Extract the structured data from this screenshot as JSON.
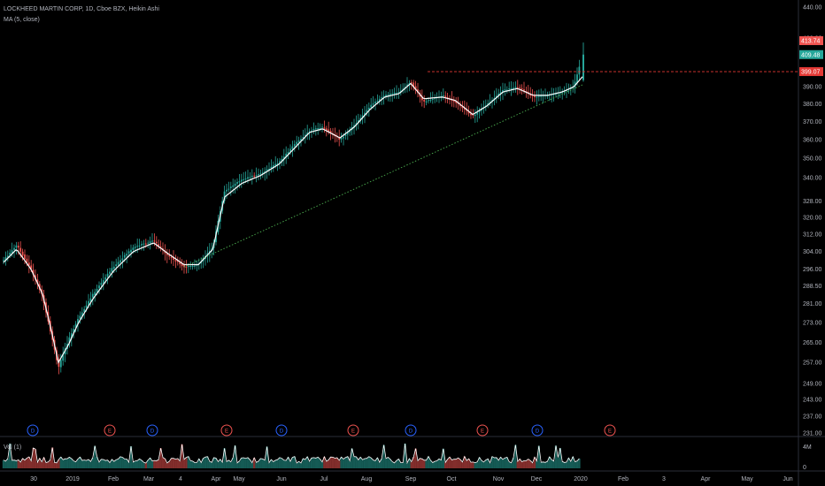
{
  "legend": {
    "symbol_line": "LOCKHEED MARTIN CORP, 1D, Cboe BZX, Heikin Ashi",
    "ma_line": "MA (5, close)",
    "vol_line": "Vol (1)"
  },
  "price_axis": {
    "ticks": [
      "440.00",
      "420.00",
      "400.00",
      "390.00",
      "380.00",
      "370.00",
      "360.00",
      "350.00",
      "340.00",
      "328.00",
      "320.00",
      "312.00",
      "304.00",
      "296.00",
      "288.50",
      "281.00",
      "273.00",
      "265.00",
      "257.00",
      "249.00",
      "243.00",
      "237.00",
      "231.00"
    ],
    "tags": [
      {
        "label": "413.74",
        "value": 413.74,
        "color": "#ef5350"
      },
      {
        "label": "409.48",
        "value": 409.48,
        "color": "#26a69a"
      },
      {
        "label": "399.07",
        "value": 399.07,
        "color": "#e53935"
      }
    ]
  },
  "volume_axis": {
    "ticks": [
      "4M",
      "0"
    ]
  },
  "time_axis": {
    "labels": [
      "30",
      "2019",
      "Feb",
      "Mar",
      "4",
      "Apr",
      "May",
      "Jun",
      "Jul",
      "Aug",
      "Sep",
      "Oct",
      "Nov",
      "Dec",
      "2020",
      "Feb",
      "3",
      "Apr",
      "May",
      "Jun"
    ]
  },
  "events": [
    "D",
    "E",
    "D",
    "E",
    "D",
    "E",
    "D",
    "E",
    "D",
    "E"
  ],
  "colors": {
    "up": "#26a69a",
    "down": "#ef5350",
    "ma": "#ffffff",
    "resistance": "#e53935",
    "support": "#4caf50",
    "dividend": "#2962ff",
    "earnings": "#ef5350"
  },
  "chart_data": {
    "type": "candlestick",
    "symbol": "LOCKHEED MARTIN CORP",
    "interval": "1D",
    "exchange": "Cboe BZX",
    "style": "Heikin Ashi",
    "indicators": [
      "MA (5, close)",
      "Vol (1)"
    ],
    "y_scale": "log",
    "ylim": [
      231,
      440
    ],
    "last_price": 409.48,
    "series": [
      {
        "name": "price",
        "points": [
          [
            "2018-12-01",
            300
          ],
          [
            "2018-12-10",
            307
          ],
          [
            "2018-12-20",
            296
          ],
          [
            "2018-12-28",
            284
          ],
          [
            "2019-01-03",
            268
          ],
          [
            "2019-01-08",
            255
          ],
          [
            "2019-01-15",
            266
          ],
          [
            "2019-01-22",
            275
          ],
          [
            "2019-02-01",
            285
          ],
          [
            "2019-02-15",
            297
          ],
          [
            "2019-03-01",
            306
          ],
          [
            "2019-03-15",
            309
          ],
          [
            "2019-03-25",
            302
          ],
          [
            "2019-04-05",
            297
          ],
          [
            "2019-04-15",
            298
          ],
          [
            "2019-04-25",
            306
          ],
          [
            "2019-05-03",
            333
          ],
          [
            "2019-05-15",
            339
          ],
          [
            "2019-05-28",
            342
          ],
          [
            "2019-06-10",
            348
          ],
          [
            "2019-06-20",
            357
          ],
          [
            "2019-07-01",
            365
          ],
          [
            "2019-07-10",
            367
          ],
          [
            "2019-07-22",
            360
          ],
          [
            "2019-08-01",
            368
          ],
          [
            "2019-08-12",
            379
          ],
          [
            "2019-08-22",
            385
          ],
          [
            "2019-09-01",
            387
          ],
          [
            "2019-09-09",
            393
          ],
          [
            "2019-09-18",
            381
          ],
          [
            "2019-10-01",
            385
          ],
          [
            "2019-10-10",
            381
          ],
          [
            "2019-10-22",
            373
          ],
          [
            "2019-11-01",
            380
          ],
          [
            "2019-11-12",
            388
          ],
          [
            "2019-11-22",
            390
          ],
          [
            "2019-12-03",
            384
          ],
          [
            "2019-12-13",
            385
          ],
          [
            "2019-12-23",
            387
          ],
          [
            "2019-12-31",
            390
          ],
          [
            "2020-01-06",
            409.48
          ]
        ]
      },
      {
        "name": "MA (5, close)",
        "points": [
          [
            "2018-12-01",
            299
          ],
          [
            "2018-12-10",
            305
          ],
          [
            "2018-12-20",
            296
          ],
          [
            "2018-12-28",
            285
          ],
          [
            "2019-01-03",
            270
          ],
          [
            "2019-01-08",
            257
          ],
          [
            "2019-01-15",
            264
          ],
          [
            "2019-01-22",
            273
          ],
          [
            "2019-02-01",
            283
          ],
          [
            "2019-02-15",
            295
          ],
          [
            "2019-03-01",
            304
          ],
          [
            "2019-03-15",
            308
          ],
          [
            "2019-03-25",
            303
          ],
          [
            "2019-04-05",
            298
          ],
          [
            "2019-04-15",
            298
          ],
          [
            "2019-04-25",
            305
          ],
          [
            "2019-05-03",
            330
          ],
          [
            "2019-05-15",
            337
          ],
          [
            "2019-05-28",
            341
          ],
          [
            "2019-06-10",
            347
          ],
          [
            "2019-06-20",
            355
          ],
          [
            "2019-07-01",
            364
          ],
          [
            "2019-07-10",
            366
          ],
          [
            "2019-07-22",
            361
          ],
          [
            "2019-08-01",
            367
          ],
          [
            "2019-08-12",
            377
          ],
          [
            "2019-08-22",
            384
          ],
          [
            "2019-09-01",
            386
          ],
          [
            "2019-09-09",
            392
          ],
          [
            "2019-09-18",
            383
          ],
          [
            "2019-10-01",
            384
          ],
          [
            "2019-10-10",
            382
          ],
          [
            "2019-10-22",
            374
          ],
          [
            "2019-11-01",
            379
          ],
          [
            "2019-11-12",
            387
          ],
          [
            "2019-11-22",
            389
          ],
          [
            "2019-12-03",
            385
          ],
          [
            "2019-12-13",
            385
          ],
          [
            "2019-12-23",
            387
          ],
          [
            "2019-12-31",
            390
          ],
          [
            "2020-01-06",
            396
          ]
        ]
      }
    ],
    "annotations": [
      {
        "type": "resistance",
        "value": 399.07,
        "style": "dashed",
        "color": "#e53935"
      },
      {
        "type": "support_trendline",
        "from": [
          "2019-04-05",
          297
        ],
        "to": [
          "2020-01-06",
          387
        ],
        "style": "dotted",
        "color": "#4caf50"
      }
    ]
  }
}
